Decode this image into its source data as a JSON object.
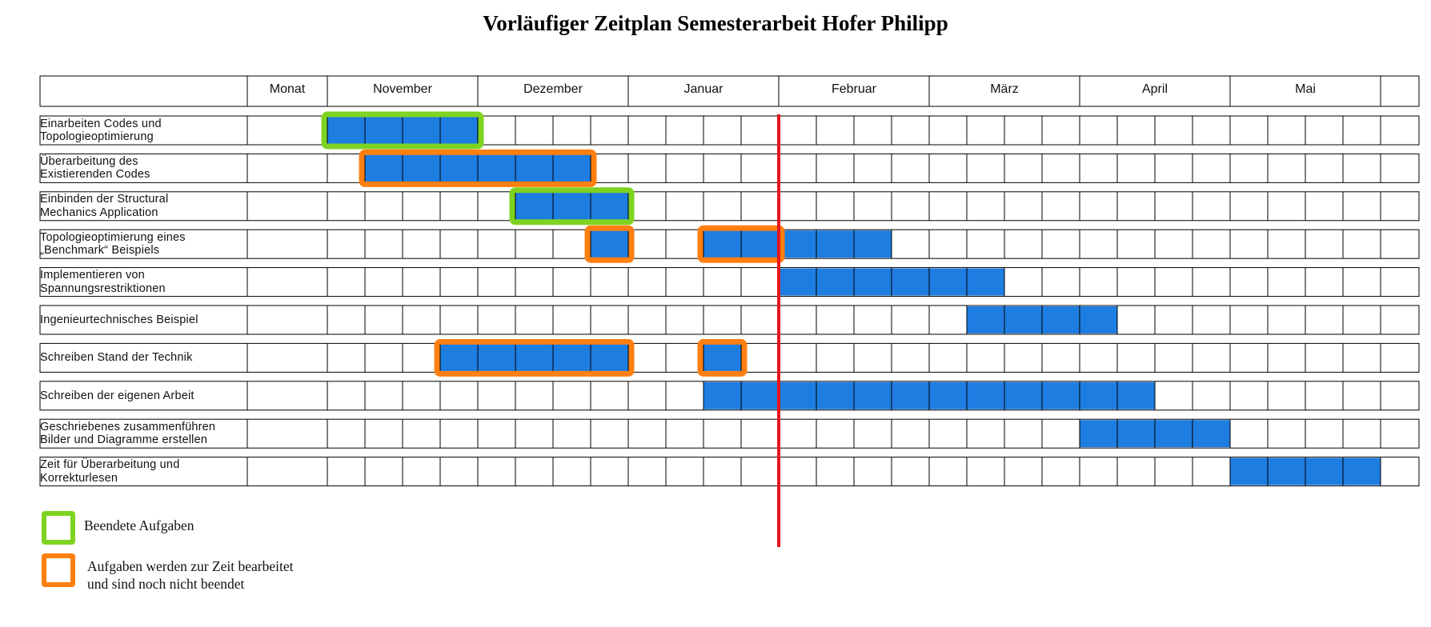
{
  "title": "Vorläufiger Zeitplan Semesterarbeit Hofer Philipp",
  "chart_data": {
    "type": "gantt",
    "header_label": "Monat",
    "weeks_per_month": 4,
    "months": [
      "November",
      "Dezember",
      "Januar",
      "Februar",
      "März",
      "April",
      "Mai"
    ],
    "current_week": 12,
    "colors": {
      "bar": "#1e7de0",
      "finished": "#7ed321",
      "in_progress": "#ff7f11",
      "today_line": "#e8161b",
      "grid": "#000000"
    },
    "tasks": [
      {
        "label": "Einarbeiten Codes und\nTopologieoptimierung",
        "bars": [
          [
            0,
            4
          ]
        ],
        "markers": [
          {
            "start": 0,
            "end": 4,
            "status": "finished"
          }
        ]
      },
      {
        "label": " Überarbeitung des\nExistierenden Codes",
        "bars": [
          [
            1,
            7
          ]
        ],
        "markers": [
          {
            "start": 1,
            "end": 7,
            "status": "in_progress"
          }
        ]
      },
      {
        "label": "Einbinden der Structural\nMechanics Application",
        "bars": [
          [
            5,
            8
          ]
        ],
        "markers": [
          {
            "start": 5,
            "end": 8,
            "status": "finished"
          }
        ]
      },
      {
        "label": "Topologieoptimierung eines\n„Benchmark“ Beispiels",
        "bars": [
          [
            7,
            8
          ],
          [
            10,
            15
          ]
        ],
        "markers": [
          {
            "start": 7,
            "end": 8,
            "status": "in_progress"
          },
          {
            "start": 10,
            "end": 12,
            "status": "in_progress"
          }
        ]
      },
      {
        "label": "Implementieren von\nSpannungsrestriktionen",
        "bars": [
          [
            12,
            18
          ]
        ],
        "markers": []
      },
      {
        "label": "Ingenieurtechnisches Beispiel",
        "bars": [
          [
            17,
            21
          ]
        ],
        "markers": []
      },
      {
        "label": "Schreiben Stand der Technik",
        "bars": [
          [
            3,
            8
          ],
          [
            10,
            11
          ]
        ],
        "markers": [
          {
            "start": 3,
            "end": 8,
            "status": "in_progress"
          },
          {
            "start": 10,
            "end": 11,
            "status": "in_progress"
          }
        ]
      },
      {
        "label": "Schreiben der eigenen Arbeit",
        "bars": [
          [
            10,
            22
          ]
        ],
        "markers": []
      },
      {
        "label": "Geschriebenes zusammenführen\nBilder und Diagramme erstellen",
        "bars": [
          [
            20,
            24
          ]
        ],
        "markers": []
      },
      {
        "label": "Zeit für Überarbeitung und\nKorrekturlesen",
        "bars": [
          [
            24,
            28
          ]
        ],
        "markers": []
      }
    ]
  },
  "legend": {
    "finished": "Beendete Aufgaben",
    "in_progress": "Aufgaben werden zur Zeit bearbeitet\nund sind noch nicht beendet"
  }
}
